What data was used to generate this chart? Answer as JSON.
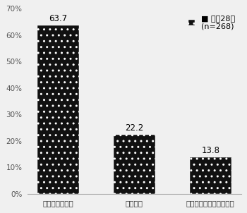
{
  "categories": [
    "モバイルワーク",
    "在宅勤務",
    "サテライトオフィス勤務"
  ],
  "values": [
    63.7,
    22.2,
    13.8
  ],
  "bar_color": "#111111",
  "ylim": [
    0,
    70
  ],
  "yticks": [
    0,
    10,
    20,
    30,
    40,
    50,
    60,
    70
  ],
  "ytick_labels": [
    "0%",
    "10%",
    "20%",
    "30%",
    "40%",
    "50%",
    "60%",
    "70%"
  ],
  "legend_label_line1": "■ 平成28年",
  "legend_label_line2": "(n=268)",
  "value_labels": [
    "63.7",
    "22.2",
    "13.8"
  ],
  "background_color": "#f0f0f0",
  "font_size_ticks": 7.5,
  "font_size_values": 8.5,
  "font_size_legend": 8
}
